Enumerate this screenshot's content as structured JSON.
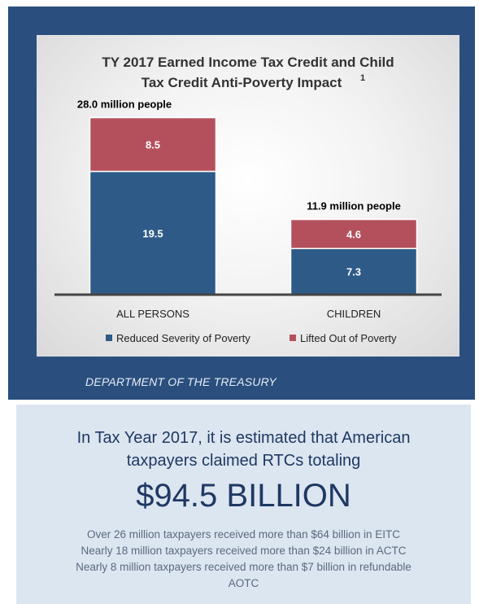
{
  "chart_data": {
    "type": "bar",
    "stacked": true,
    "title_lines": [
      "TY 2017 Earned Income Tax Credit and Child",
      "Tax Credit Anti-Poverty Impact"
    ],
    "title_footnote": "1",
    "categories": [
      "ALL PERSONS",
      "CHILDREN"
    ],
    "series": [
      {
        "name": "Reduced Severity of Poverty",
        "values": [
          19.5,
          7.3
        ],
        "color": "#2e5a87"
      },
      {
        "name": "Lifted Out of Poverty",
        "values": [
          8.5,
          4.6
        ],
        "color": "#b4505c"
      }
    ],
    "totals": [
      "28.0 million people",
      "11.9 million people"
    ],
    "ylim": [
      0,
      31
    ],
    "legend_position": "bottom",
    "grid": false
  },
  "source": "DEPARTMENT OF THE TREASURY",
  "summary": {
    "headline_line1": "In Tax Year 2017, it is estimated that American",
    "headline_line2": "taxpayers claimed RTCs totaling",
    "amount": "$94.5 BILLION",
    "details": [
      "Over 26 million taxpayers received more than $64 billion in EITC",
      "Nearly 18 million taxpayers received more than $24 billion in ACTC",
      "Nearly 8 million taxpayers received more than $7 billion in refundable",
      "AOTC"
    ]
  }
}
